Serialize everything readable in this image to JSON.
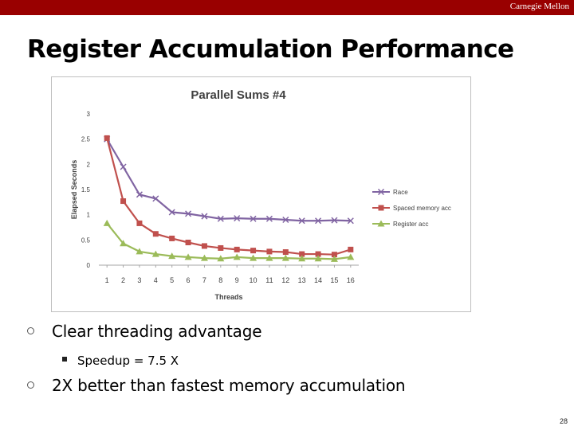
{
  "header": {
    "brand": "Carnegie Mellon"
  },
  "slide": {
    "title": "Register Accumulation Performance",
    "bullets": [
      {
        "text": "Clear threading advantage",
        "sub": [
          "Speedup = 7.5 X"
        ]
      },
      {
        "text": "2X better than fastest memory accumulation",
        "sub": []
      }
    ],
    "page_number": "28"
  },
  "chart_data": {
    "type": "line",
    "title": "Parallel Sums #4",
    "xlabel": "Threads",
    "ylabel": "Elapsed Seconds",
    "categories": [
      "1",
      "2",
      "3",
      "4",
      "5",
      "6",
      "7",
      "8",
      "9",
      "10",
      "11",
      "12",
      "13",
      "14",
      "15",
      "16"
    ],
    "ylim": [
      0,
      3
    ],
    "yticks": [
      0,
      0.5,
      1,
      1.5,
      2,
      2.5,
      3
    ],
    "ytick_labels": [
      "0",
      "0.5",
      "1",
      "1.5",
      "2",
      "2.5",
      "3"
    ],
    "grid": false,
    "legend": "right",
    "series": [
      {
        "name": "Race",
        "color": "#8064a2",
        "marker": "x",
        "values": [
          2.5,
          1.95,
          1.4,
          1.32,
          1.05,
          1.02,
          0.97,
          0.92,
          0.93,
          0.92,
          0.92,
          0.9,
          0.88,
          0.88,
          0.89,
          0.88
        ]
      },
      {
        "name": "Spaced memory acc",
        "color": "#c0504d",
        "marker": "square",
        "values": [
          2.52,
          1.27,
          0.83,
          0.62,
          0.53,
          0.45,
          0.38,
          0.34,
          0.31,
          0.29,
          0.27,
          0.26,
          0.22,
          0.22,
          0.21,
          0.31
        ]
      },
      {
        "name": "Register acc",
        "color": "#9bbb59",
        "marker": "triangle",
        "values": [
          0.83,
          0.43,
          0.27,
          0.22,
          0.18,
          0.16,
          0.14,
          0.13,
          0.16,
          0.14,
          0.14,
          0.14,
          0.13,
          0.13,
          0.12,
          0.16
        ]
      }
    ]
  }
}
